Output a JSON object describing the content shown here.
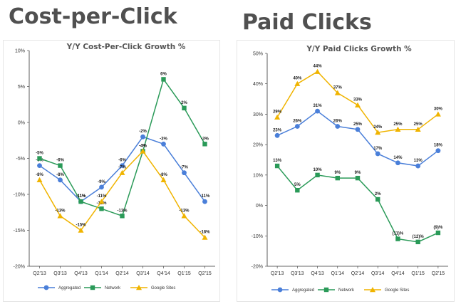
{
  "headings": [
    "Cost-per-Click",
    "Paid Clicks"
  ],
  "chart_data": [
    {
      "type": "line",
      "title": "Y/Y Cost-Per-Click Growth %",
      "categories": [
        "Q2'13",
        "Q3'13",
        "Q4'13",
        "Q1'14",
        "Q2'14",
        "Q3'14",
        "Q4'14",
        "Q1'15",
        "Q2'15"
      ],
      "ylim": [
        -20,
        10
      ],
      "yticks": [
        10,
        5,
        0,
        -5,
        -10,
        -15,
        -20
      ],
      "ytick_labels": [
        "10%",
        "5%",
        "0%",
        "-5%",
        "-10%",
        "-15%",
        "-20%"
      ],
      "grid": false,
      "legend": "bottom",
      "series": [
        {
          "name": "Aggregated",
          "color": "#4a7fd9",
          "marker": "circle",
          "values": [
            -6,
            -8,
            -11,
            -9,
            -6,
            -2,
            -3,
            -7,
            -11
          ],
          "labels": [
            "-6%",
            "-8%",
            "-11%",
            "-9%",
            "-6%",
            "-2%",
            "-3%",
            "-7%",
            "-11%"
          ]
        },
        {
          "name": "Network",
          "color": "#2a9a58",
          "marker": "square",
          "values": [
            -5,
            -6,
            -11,
            -12,
            -13,
            -4,
            6,
            2,
            -3
          ],
          "labels": [
            "-5%",
            "-6%",
            "-11%",
            "-12%",
            "-13%",
            "-4%",
            "6%",
            "2%",
            "-3%"
          ]
        },
        {
          "name": "Google Sites",
          "color": "#f0b400",
          "marker": "triangle",
          "values": [
            -8,
            -13,
            -15,
            -11,
            -7,
            -4,
            -8,
            -13,
            -16
          ],
          "labels": [
            "-8%",
            "-13%",
            "-15%",
            "-11%",
            "-7%",
            "-4%",
            "-8%",
            "-13%",
            "-16%"
          ]
        }
      ]
    },
    {
      "type": "line",
      "title": "Y/Y Paid Clicks Growth %",
      "categories": [
        "Q2'13",
        "Q3'13",
        "Q4'13",
        "Q1'14",
        "Q2'14",
        "Q3'14",
        "Q4'14",
        "Q1'15",
        "Q2'15"
      ],
      "ylim": [
        -20,
        50
      ],
      "yticks": [
        50,
        40,
        30,
        20,
        10,
        0,
        -10,
        -20
      ],
      "ytick_labels": [
        "50%",
        "40%",
        "30%",
        "20%",
        "10%",
        "0%",
        "-10%",
        "-20%"
      ],
      "grid": false,
      "legend": "bottom",
      "series": [
        {
          "name": "Aggregated",
          "color": "#4a7fd9",
          "marker": "circle",
          "values": [
            23,
            26,
            31,
            26,
            25,
            17,
            14,
            13,
            18
          ],
          "labels": [
            "23%",
            "26%",
            "31%",
            "26%",
            "25%",
            "17%",
            "14%",
            "13%",
            "18%"
          ]
        },
        {
          "name": "Network",
          "color": "#2a9a58",
          "marker": "square",
          "values": [
            13,
            5,
            10,
            9,
            9,
            2,
            -11,
            -12,
            -9
          ],
          "labels": [
            "13%",
            "5%",
            "10%",
            "9%",
            "9%",
            "2%",
            "(11)%",
            "(12)%",
            "(9)%"
          ]
        },
        {
          "name": "Google Sites",
          "color": "#f0b400",
          "marker": "triangle",
          "values": [
            29,
            40,
            44,
            37,
            33,
            24,
            25,
            25,
            30
          ],
          "labels": [
            "29%",
            "40%",
            "44%",
            "37%",
            "33%",
            "24%",
            "25%",
            "25%",
            "30%"
          ]
        }
      ]
    }
  ]
}
